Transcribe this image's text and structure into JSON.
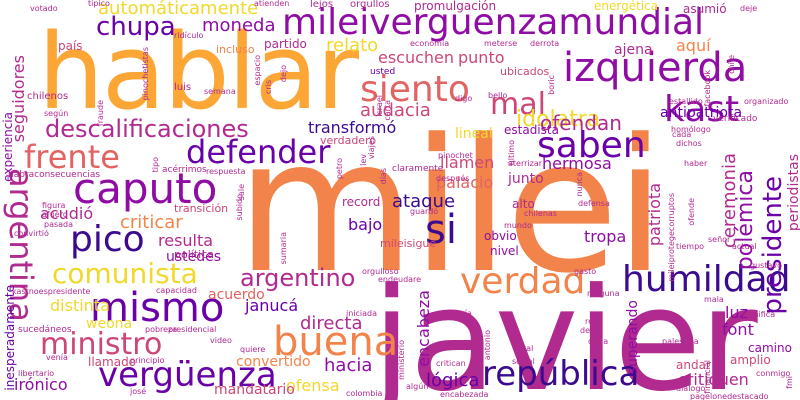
{
  "words": {
    "milei": "milei",
    "javier": "javier",
    "hablar": "hablar",
    "mileiverguenzamundial": "mileiverguenzamundial",
    "izquierda": "izquierda",
    "caputo": "caputo",
    "descalificaciones": "descalificaciones",
    "defender": "defender",
    "frente": "frente",
    "argentina": "argentina",
    "pico": "pico",
    "si": "si",
    "saben": "saben",
    "kast": "kast",
    "siento": "siento",
    "mal": "mal",
    "humildad": "humildad",
    "verdad": "verdad",
    "comunista": "comunista",
    "mismo": "mismo",
    "ministro": "ministro",
    "buena": "buena",
    "verguenza": "vergüenza",
    "republica": "república",
    "argentino": "argentino",
    "chupa": "chupa",
    "moneda": "moneda",
    "automaticamente": "automáticamente",
    "promulgacion": "promulgación",
    "energetica": "energética",
    "asumio": "asumió",
    "transformo": "transformó",
    "ofendan": "ofendan",
    "escuchen": "escuchen",
    "punto": "punto",
    "idolatra": "idolatra",
    "antipatriota": "antipatriota",
    "relato": "relato",
    "ajena": "ajena",
    "aqui": "aquí",
    "audacia": "audacia",
    "estadista": "estadista",
    "llamen": "llamen",
    "hermosa": "hermosa",
    "palacio": "palacio",
    "junto": "junto",
    "ataque": "ataque",
    "bajo": "bajo",
    "tropa": "tropa",
    "patriota": "patriota",
    "ceremonia": "ceremonia",
    "polemica": "polémica",
    "presidente": "presidente",
    "periodistas": "periodistas",
    "seguidores": "seguidores",
    "acudio": "acudió",
    "critican": "criticar",
    "resulta": "resulta",
    "ustedes": "ustedes",
    "distinta": "distinta",
    "acuerdo": "acuerdo",
    "janucá": "janucá",
    "directa": "directa",
    "luz": "luz",
    "font": "font",
    "camino": "camino",
    "amplio": "amplio",
    "critiquen": "critiquen",
    "weona": "weona",
    "hacia": "hacia",
    "convertido": "convertido",
    "ofensa": "ofensa",
    "logica": "lógica",
    "encabeza": "encabeza",
    "superando": "superando",
    "andar": "andar",
    "ironico": "irónico",
    "llamado": "llamado",
    "mandatario": "mandatario",
    "inesperadamente": "inesperadamente",
    "experiencia": "experiencia",
    "partido": "partido",
    "incluso": "incluso",
    "pais": "país",
    "chilenos": "chilenos",
    "verificado": "verificado",
    "lineal": "lineal",
    "record": "record",
    "transicion": "transición",
    "obvio": "obvio",
    "nivel": "nivel",
    "alto": "alto",
    "mileisigue": "mileisigue",
    "politica": "política",
    "usted": "usted",
    "verdadero": "verdadero",
    "ubicados": "ubicados",
    "ridiculo": "ridículo",
    "tipico": "típico",
    "votado": "votado",
    "atienden": "atienden",
    "lejos": "lejos",
    "orgullos": "orgullos",
    "deje": "deje",
    "economia": "economía",
    "meterse": "meterse",
    "derrota": "derrota",
    "semana": "semana",
    "luis": "luis",
    "digo": "digo",
    "claramente": "claramente",
    "pinochet": "pinochet",
    "respuesta": "respuesta",
    "despues": "después",
    "aterrizar": "aterrizar",
    "defensa": "defensa",
    "chilenas": "chilenas",
    "guardo": "guardó",
    "mundo": "mundo",
    "capacidad": "capacidad",
    "presidencial": "presidencial",
    "pobreza": "pobreza",
    "principio": "principio",
    "venia": "venía",
    "libertario": "libertario",
    "jose": "josé",
    "colombia": "colombia",
    "encabezada": "encabezada",
    "quiere": "quiere",
    "video": "video",
    "tiempo": "tiempo",
    "senor": "señor",
    "actual": "actual",
    "gustavo": "gustavo",
    "significa": "significa",
    "conmigo": "conmigo",
    "diálogo": "diálogo",
    "sucedaneos": "sucedáneos",
    "segun": "según",
    "figura": "figura",
    "afuero": "afuero",
    "pasada": "pasada",
    "convirtio": "convirtió",
    "habraconsecuencias": "habraconsecuencias",
    "kastnoespresidente": "kastnoespresidente",
    "acerrimos": "acérrimos",
    "organizado": "organizado",
    "homologo": "homólogo",
    "estallido": "estallido",
    "cada": "cada",
    "dichos": "dichos",
    "haber": "haber",
    "real": "real",
    "dejo": "dejó",
    "duda": "duda",
    "total": "total",
    "social": "social",
    "critican2": "critican",
    "ninguna": "ninguna",
    "mala": "mala",
    "orgulloso": "orgulloso",
    "endeudare": "endeudare",
    "pagelonedestacado": "pagelonedestacado",
    "mileiprotegecorruptos": "mileiprotegecorruptos",
    "pinochetistas": "pinochetistas",
    "fraude": "fraude",
    "sale": "sale",
    "sumaria": "sumaria",
    "subido": "subido",
    "iniciada": "iniciada",
    "volveria": "volvería",
    "antonio": "antonio",
    "israel": "israel",
    "algun": "algún",
    "ministerio": "ministerio",
    "gasto": "gasto",
    "financial": "financial",
    "palestina": "palestina",
    "chile": "chile",
    "ofende": "ofende",
    "nunca": "nunca",
    "tipo": "tipo",
    "cris": "cris",
    "dejo2": "dejo",
    "facebook": "facebook",
    "bello": "bello",
    "espacio": "espacio",
    "viajes": "viajes",
    "carta": "carta",
    "boric": "boric",
    "fmi": "fmi",
    "lev": "lev",
    "dias": "días",
    "petro": "petro",
    "ultimo": "último"
  },
  "colors": {
    "deep_violet": "#3b0a8f",
    "violet": "#6a00a8",
    "purple": "#8f0da4",
    "magenta": "#b12a90",
    "pink": "#cc4778",
    "coral": "#e16462",
    "orange": "#f2844b",
    "amber": "#fca636",
    "yellow": "#f0d92a"
  }
}
